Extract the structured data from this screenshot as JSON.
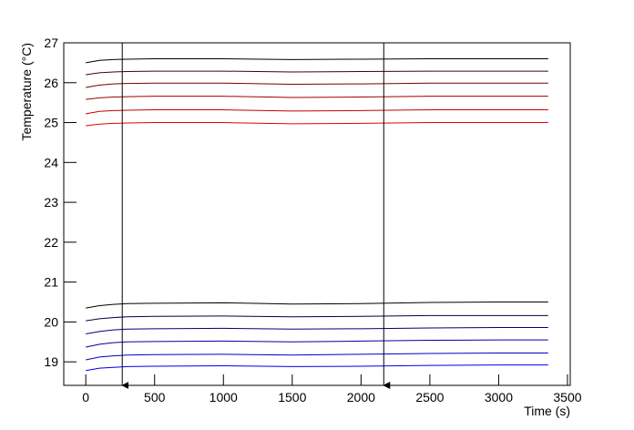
{
  "chart_data": {
    "type": "line",
    "xlabel": "Time (s)",
    "ylabel": "Temperature (°C)",
    "x": [
      0,
      100,
      200,
      300,
      500,
      1000,
      1500,
      2000,
      2500,
      3000,
      3360
    ],
    "series": [
      {
        "color": "#000000",
        "values": [
          26.5,
          26.56,
          26.58,
          26.59,
          26.6,
          26.6,
          26.58,
          26.59,
          26.6,
          26.6,
          26.6
        ]
      },
      {
        "color": "#4a0000",
        "values": [
          26.2,
          26.25,
          26.27,
          26.28,
          26.29,
          26.29,
          26.27,
          26.28,
          26.29,
          26.29,
          26.29
        ]
      },
      {
        "color": "#7a0000",
        "values": [
          25.88,
          25.94,
          25.97,
          25.98,
          25.99,
          25.99,
          25.96,
          25.97,
          25.99,
          25.99,
          25.99
        ]
      },
      {
        "color": "#a00000",
        "values": [
          25.58,
          25.62,
          25.64,
          25.65,
          25.66,
          25.66,
          25.63,
          25.64,
          25.66,
          25.66,
          25.66
        ]
      },
      {
        "color": "#c80000",
        "values": [
          25.22,
          25.28,
          25.3,
          25.31,
          25.32,
          25.32,
          25.29,
          25.3,
          25.32,
          25.32,
          25.32
        ]
      },
      {
        "color": "#e80000",
        "values": [
          24.92,
          24.96,
          24.98,
          24.99,
          25.0,
          25.0,
          24.97,
          24.98,
          25.0,
          25.0,
          25.0
        ]
      },
      {
        "color": "#000000",
        "values": [
          20.35,
          20.41,
          20.44,
          20.46,
          20.47,
          20.48,
          20.45,
          20.46,
          20.49,
          20.5,
          20.5
        ]
      },
      {
        "color": "#00004a",
        "values": [
          20.03,
          20.08,
          20.11,
          20.13,
          20.14,
          20.15,
          20.13,
          20.14,
          20.16,
          20.16,
          20.16
        ]
      },
      {
        "color": "#00007a",
        "values": [
          19.7,
          19.76,
          19.8,
          19.82,
          19.83,
          19.84,
          19.82,
          19.83,
          19.85,
          19.86,
          19.86
        ]
      },
      {
        "color": "#0000a0",
        "values": [
          19.37,
          19.44,
          19.48,
          19.5,
          19.51,
          19.52,
          19.5,
          19.52,
          19.54,
          19.55,
          19.55
        ]
      },
      {
        "color": "#0000c8",
        "values": [
          19.05,
          19.12,
          19.15,
          19.17,
          19.18,
          19.19,
          19.17,
          19.19,
          19.21,
          19.22,
          19.22
        ]
      },
      {
        "color": "#0000e8",
        "values": [
          18.78,
          18.84,
          18.86,
          18.88,
          18.89,
          18.9,
          18.88,
          18.89,
          18.91,
          18.92,
          18.92
        ]
      }
    ],
    "arrows_x": [
      265,
      2165
    ],
    "xlim": [
      -160,
      3520
    ],
    "ylim": [
      18.41,
      27
    ],
    "xticks": [
      0,
      500,
      1000,
      1500,
      2000,
      2500,
      3000,
      3500
    ],
    "yticks": [
      19,
      20,
      21,
      22,
      23,
      24,
      25,
      26,
      27
    ]
  }
}
